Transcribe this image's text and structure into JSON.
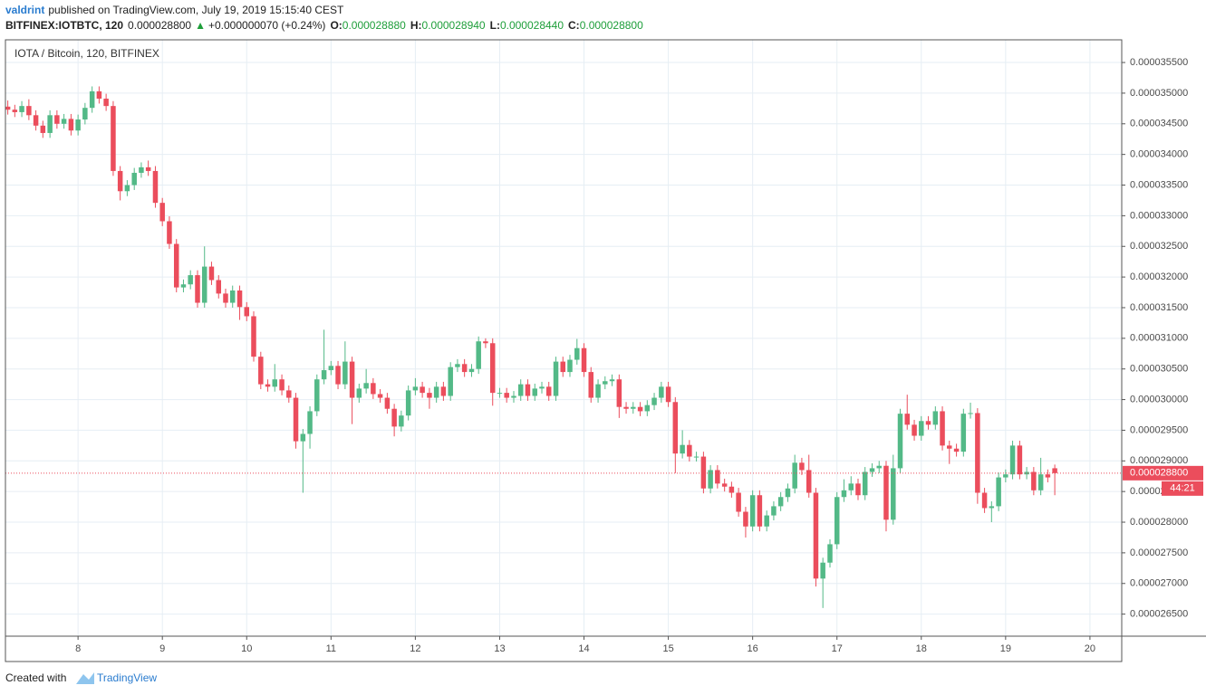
{
  "header": {
    "author": "valdrint",
    "published": "published on TradingView.com, July 19, 2019 15:15:40 CEST",
    "symbol": "BITFINEX:IOTBTC, 120",
    "price": "0.000028800",
    "change": "+0.000000070 (+0.24%)",
    "open_label": "O:",
    "open": "0.000028880",
    "high_label": "H:",
    "high": "0.000028940",
    "low_label": "L:",
    "low": "0.000028440",
    "close_label": "C:",
    "close": "0.000028800"
  },
  "footer": {
    "created": "Created with",
    "brand": "TradingView"
  },
  "chart_data": {
    "type": "candlestick",
    "title": "IOTA / Bitcoin, 120, BITFINEX",
    "up_color": "#53b987",
    "down_color": "#eb4d5c",
    "grid": true,
    "last_price_label": "0.000028800",
    "countdown": "44:21",
    "xlim": [
      7.139,
      20.377
    ],
    "xticks": [
      8,
      9,
      10,
      11,
      12,
      13,
      14,
      15,
      16,
      17,
      18,
      19,
      20
    ],
    "ylim": [
      2.614e-05,
      3.587e-05
    ],
    "yticks": [
      {
        "value": 2.65e-05,
        "label": "0.000026500"
      },
      {
        "value": 2.7e-05,
        "label": "0.000027000"
      },
      {
        "value": 2.75e-05,
        "label": "0.000027500"
      },
      {
        "value": 2.8e-05,
        "label": "0.000028000"
      },
      {
        "value": 2.85e-05,
        "label": "0.000028500"
      },
      {
        "value": 2.9e-05,
        "label": "0.000029000"
      },
      {
        "value": 2.95e-05,
        "label": "0.000029500"
      },
      {
        "value": 3e-05,
        "label": "0.000030000"
      },
      {
        "value": 3.05e-05,
        "label": "0.000030500"
      },
      {
        "value": 3.1e-05,
        "label": "0.000031000"
      },
      {
        "value": 3.15e-05,
        "label": "0.000031500"
      },
      {
        "value": 3.2e-05,
        "label": "0.000032000"
      },
      {
        "value": 3.25e-05,
        "label": "0.000032500"
      },
      {
        "value": 3.3e-05,
        "label": "0.000033000"
      },
      {
        "value": 3.35e-05,
        "label": "0.000033500"
      },
      {
        "value": 3.4e-05,
        "label": "0.000034000"
      },
      {
        "value": 3.45e-05,
        "label": "0.000034500"
      },
      {
        "value": 3.5e-05,
        "label": "0.000035000"
      },
      {
        "value": 3.55e-05,
        "label": "0.000035500"
      }
    ],
    "x": [
      7.167,
      7.25,
      7.333,
      7.417,
      7.5,
      7.583,
      7.667,
      7.75,
      7.833,
      7.917,
      8,
      8.083,
      8.167,
      8.25,
      8.333,
      8.417,
      8.5,
      8.583,
      8.667,
      8.75,
      8.833,
      8.917,
      9,
      9.083,
      9.167,
      9.25,
      9.333,
      9.417,
      9.5,
      9.583,
      9.667,
      9.75,
      9.833,
      9.917,
      10,
      10.083,
      10.167,
      10.25,
      10.333,
      10.417,
      10.5,
      10.583,
      10.667,
      10.75,
      10.833,
      10.917,
      11,
      11.083,
      11.167,
      11.25,
      11.333,
      11.417,
      11.5,
      11.583,
      11.667,
      11.75,
      11.833,
      11.917,
      12,
      12.083,
      12.167,
      12.25,
      12.333,
      12.417,
      12.5,
      12.583,
      12.667,
      12.75,
      12.833,
      12.917,
      13,
      13.083,
      13.167,
      13.25,
      13.333,
      13.417,
      13.5,
      13.583,
      13.667,
      13.75,
      13.833,
      13.917,
      14,
      14.083,
      14.167,
      14.25,
      14.333,
      14.417,
      14.5,
      14.583,
      14.667,
      14.75,
      14.833,
      14.917,
      15,
      15.083,
      15.167,
      15.25,
      15.333,
      15.417,
      15.5,
      15.583,
      15.667,
      15.75,
      15.833,
      15.917,
      16,
      16.083,
      16.167,
      16.25,
      16.333,
      16.417,
      16.5,
      16.583,
      16.667,
      16.75,
      16.833,
      16.917,
      17,
      17.083,
      17.167,
      17.25,
      17.333,
      17.417,
      17.5,
      17.583,
      17.667,
      17.75,
      17.833,
      17.917,
      18,
      18.083,
      18.167,
      18.25,
      18.333,
      18.417,
      18.5,
      18.583,
      18.667,
      18.75,
      18.833,
      18.917,
      19,
      19.083,
      19.167,
      19.25,
      19.333,
      19.417,
      19.5,
      19.583
    ],
    "open": [
      3.478e-05,
      3.473e-05,
      3.469e-05,
      3.479e-05,
      3.464e-05,
      3.447e-05,
      3.435e-05,
      3.464e-05,
      3.45e-05,
      3.458e-05,
      3.439e-05,
      3.457e-05,
      3.476e-05,
      3.503e-05,
      3.491e-05,
      3.479e-05,
      3.373e-05,
      3.34e-05,
      3.35e-05,
      3.37e-05,
      3.379e-05,
      3.373e-05,
      3.321e-05,
      3.291e-05,
      3.254e-05,
      3.183e-05,
      3.188e-05,
      3.203e-05,
      3.158e-05,
      3.217e-05,
      3.195e-05,
      3.173e-05,
      3.158e-05,
      3.178e-05,
      3.151e-05,
      3.136e-05,
      3.07e-05,
      3.025e-05,
      3.021e-05,
      3.033e-05,
      3.015e-05,
      3.003e-05,
      2.932e-05,
      2.944e-05,
      2.981e-05,
      3.033e-05,
      3.048e-05,
      3.055e-05,
      3.025e-05,
      3.062e-05,
      3.003e-05,
      3.018e-05,
      3.027e-05,
      3.009e-05,
      3.003e-05,
      2.985e-05,
      2.956e-05,
      2.974e-05,
      3.015e-05,
      3.021e-05,
      3.011e-05,
      3.003e-05,
      3.021e-05,
      3.006e-05,
      3.053e-05,
      3.058e-05,
      3.045e-05,
      3.05e-05,
      3.095e-05,
      3.092e-05,
      3.011e-05,
      3.011e-05,
      3.003e-05,
      3.006e-05,
      3.025e-05,
      3.006e-05,
      3.018e-05,
      3.021e-05,
      3.006e-05,
      3.062e-05,
      3.045e-05,
      3.065e-05,
      3.084e-05,
      3.045e-05,
      3.003e-05,
      3.025e-05,
      3.03e-05,
      3.033e-05,
      2.988e-05,
      2.985e-05,
      2.988e-05,
      2.981e-05,
      2.991e-05,
      3.003e-05,
      3.021e-05,
      2.996e-05,
      2.912e-05,
      2.926e-05,
      2.907e-05,
      2.907e-05,
      2.855e-05,
      2.885e-05,
      2.863e-05,
      2.858e-05,
      2.848e-05,
      2.817e-05,
      2.793e-05,
      2.844e-05,
      2.793e-05,
      2.811e-05,
      2.826e-05,
      2.841e-05,
      2.855e-05,
      2.897e-05,
      2.885e-05,
      2.848e-05,
      2.708e-05,
      2.734e-05,
      2.764e-05,
      2.841e-05,
      2.852e-05,
      2.863e-05,
      2.844e-05,
      2.882e-05,
      2.888e-05,
      2.892e-05,
      2.804e-05,
      2.888e-05,
      2.977e-05,
      2.959e-05,
      2.941e-05,
      2.965e-05,
      2.959e-05,
      2.981e-05,
      2.925e-05,
      2.92e-05,
      2.915e-05,
      2.977e-05,
      2.978e-05,
      2.848e-05,
      2.823e-05,
      2.826e-05,
      2.873e-05,
      2.878e-05,
      2.925e-05,
      2.878e-05,
      2.882e-05,
      2.852e-05,
      2.878e-05,
      2.888e-05
    ],
    "high": [
      3.488e-05,
      3.481e-05,
      3.487e-05,
      3.49e-05,
      3.472e-05,
      3.455e-05,
      3.472e-05,
      3.472e-05,
      3.466e-05,
      3.466e-05,
      3.465e-05,
      3.484e-05,
      3.511e-05,
      3.511e-05,
      3.499e-05,
      3.487e-05,
      3.381e-05,
      3.358e-05,
      3.378e-05,
      3.387e-05,
      3.39e-05,
      3.381e-05,
      3.329e-05,
      3.299e-05,
      3.262e-05,
      3.196e-05,
      3.211e-05,
      3.211e-05,
      3.25e-05,
      3.225e-05,
      3.203e-05,
      3.181e-05,
      3.186e-05,
      3.186e-05,
      3.159e-05,
      3.144e-05,
      3.078e-05,
      3.033e-05,
      3.058e-05,
      3.041e-05,
      3.023e-05,
      3.011e-05,
      2.952e-05,
      2.989e-05,
      3.041e-05,
      3.114e-05,
      3.063e-05,
      3.063e-05,
      3.095e-05,
      3.07e-05,
      3.026e-05,
      3.05e-05,
      3.035e-05,
      3.017e-05,
      3.011e-05,
      2.993e-05,
      2.982e-05,
      3.023e-05,
      3.035e-05,
      3.029e-05,
      3.019e-05,
      3.029e-05,
      3.029e-05,
      3.061e-05,
      3.066e-05,
      3.066e-05,
      3.058e-05,
      3.103e-05,
      3.1e-05,
      3.1e-05,
      3.019e-05,
      3.019e-05,
      3.014e-05,
      3.033e-05,
      3.033e-05,
      3.026e-05,
      3.029e-05,
      3.029e-05,
      3.07e-05,
      3.07e-05,
      3.073e-05,
      3.099e-05,
      3.092e-05,
      3.053e-05,
      3.033e-05,
      3.038e-05,
      3.041e-05,
      3.041e-05,
      2.996e-05,
      2.996e-05,
      2.996e-05,
      2.999e-05,
      3.011e-05,
      3.029e-05,
      3.029e-05,
      3.004e-05,
      2.95e-05,
      2.934e-05,
      2.915e-05,
      2.915e-05,
      2.893e-05,
      2.893e-05,
      2.871e-05,
      2.866e-05,
      2.856e-05,
      2.825e-05,
      2.852e-05,
      2.852e-05,
      2.819e-05,
      2.834e-05,
      2.849e-05,
      2.863e-05,
      2.91e-05,
      2.905e-05,
      2.91e-05,
      2.856e-05,
      2.742e-05,
      2.772e-05,
      2.849e-05,
      2.87e-05,
      2.875e-05,
      2.871e-05,
      2.89e-05,
      2.896e-05,
      2.9e-05,
      2.9e-05,
      2.91e-05,
      2.985e-05,
      3.008e-05,
      2.967e-05,
      2.973e-05,
      2.973e-05,
      2.989e-05,
      2.989e-05,
      2.933e-05,
      2.928e-05,
      2.985e-05,
      2.995e-05,
      2.986e-05,
      2.856e-05,
      2.834e-05,
      2.881e-05,
      2.886e-05,
      2.933e-05,
      2.933e-05,
      2.89e-05,
      2.89e-05,
      2.905e-05,
      2.886e-05,
      2.894e-05
    ],
    "low": [
      3.465e-05,
      3.461e-05,
      3.461e-05,
      3.456e-05,
      3.439e-05,
      3.427e-05,
      3.427e-05,
      3.442e-05,
      3.442e-05,
      3.431e-05,
      3.431e-05,
      3.449e-05,
      3.468e-05,
      3.483e-05,
      3.471e-05,
      3.365e-05,
      3.325e-05,
      3.332e-05,
      3.342e-05,
      3.362e-05,
      3.365e-05,
      3.313e-05,
      3.283e-05,
      3.246e-05,
      3.175e-05,
      3.175e-05,
      3.18e-05,
      3.15e-05,
      3.15e-05,
      3.187e-05,
      3.165e-05,
      3.15e-05,
      3.15e-05,
      3.13e-05,
      3.128e-05,
      3.062e-05,
      3.017e-05,
      3.013e-05,
      3.013e-05,
      3.007e-05,
      2.995e-05,
      2.92e-05,
      2.848e-05,
      2.92e-05,
      2.973e-05,
      3.025e-05,
      3.04e-05,
      3.017e-05,
      3.017e-05,
      2.96e-05,
      2.995e-05,
      3.01e-05,
      3.001e-05,
      2.995e-05,
      2.977e-05,
      2.94e-05,
      2.948e-05,
      2.966e-05,
      3.007e-05,
      3.003e-05,
      2.985e-05,
      2.995e-05,
      2.998e-05,
      2.998e-05,
      3.045e-05,
      3.037e-05,
      3.037e-05,
      3.042e-05,
      3.084e-05,
      2.99e-05,
      3.003e-05,
      2.995e-05,
      2.995e-05,
      2.998e-05,
      2.998e-05,
      2.998e-05,
      3.01e-05,
      2.998e-05,
      2.998e-05,
      3.037e-05,
      3.037e-05,
      3.057e-05,
      3.037e-05,
      2.995e-05,
      2.995e-05,
      3.017e-05,
      3.022e-05,
      2.97e-05,
      2.977e-05,
      2.977e-05,
      2.973e-05,
      2.973e-05,
      2.983e-05,
      2.995e-05,
      2.988e-05,
      2.88e-05,
      2.904e-05,
      2.899e-05,
      2.899e-05,
      2.847e-05,
      2.847e-05,
      2.855e-05,
      2.85e-05,
      2.84e-05,
      2.809e-05,
      2.775e-05,
      2.785e-05,
      2.785e-05,
      2.785e-05,
      2.803e-05,
      2.818e-05,
      2.833e-05,
      2.847e-05,
      2.877e-05,
      2.84e-05,
      2.695e-05,
      2.66e-05,
      2.726e-05,
      2.756e-05,
      2.833e-05,
      2.844e-05,
      2.836e-05,
      2.836e-05,
      2.874e-05,
      2.88e-05,
      2.785e-05,
      2.796e-05,
      2.88e-05,
      2.951e-05,
      2.933e-05,
      2.933e-05,
      2.951e-05,
      2.951e-05,
      2.917e-05,
      2.895e-05,
      2.907e-05,
      2.907e-05,
      2.969e-05,
      2.83e-05,
      2.815e-05,
      2.8e-05,
      2.818e-05,
      2.865e-05,
      2.87e-05,
      2.87e-05,
      2.87e-05,
      2.844e-05,
      2.844e-05,
      2.865e-05,
      2.844e-05
    ],
    "close": [
      3.473e-05,
      3.469e-05,
      3.479e-05,
      3.464e-05,
      3.447e-05,
      3.435e-05,
      3.464e-05,
      3.45e-05,
      3.458e-05,
      3.439e-05,
      3.457e-05,
      3.476e-05,
      3.503e-05,
      3.491e-05,
      3.479e-05,
      3.373e-05,
      3.34e-05,
      3.35e-05,
      3.37e-05,
      3.379e-05,
      3.373e-05,
      3.321e-05,
      3.291e-05,
      3.254e-05,
      3.183e-05,
      3.188e-05,
      3.203e-05,
      3.158e-05,
      3.217e-05,
      3.195e-05,
      3.173e-05,
      3.158e-05,
      3.178e-05,
      3.151e-05,
      3.136e-05,
      3.07e-05,
      3.025e-05,
      3.021e-05,
      3.033e-05,
      3.015e-05,
      3.003e-05,
      2.932e-05,
      2.944e-05,
      2.981e-05,
      3.033e-05,
      3.048e-05,
      3.055e-05,
      3.025e-05,
      3.062e-05,
      3.003e-05,
      3.018e-05,
      3.027e-05,
      3.009e-05,
      3.003e-05,
      2.985e-05,
      2.956e-05,
      2.974e-05,
      3.015e-05,
      3.021e-05,
      3.011e-05,
      3.003e-05,
      3.021e-05,
      3.006e-05,
      3.053e-05,
      3.058e-05,
      3.045e-05,
      3.05e-05,
      3.095e-05,
      3.092e-05,
      3.011e-05,
      3.011e-05,
      3.003e-05,
      3.006e-05,
      3.025e-05,
      3.006e-05,
      3.018e-05,
      3.021e-05,
      3.006e-05,
      3.062e-05,
      3.045e-05,
      3.065e-05,
      3.084e-05,
      3.045e-05,
      3.003e-05,
      3.025e-05,
      3.03e-05,
      3.033e-05,
      2.988e-05,
      2.985e-05,
      2.988e-05,
      2.981e-05,
      2.991e-05,
      3.003e-05,
      3.021e-05,
      2.996e-05,
      2.912e-05,
      2.926e-05,
      2.907e-05,
      2.907e-05,
      2.855e-05,
      2.885e-05,
      2.863e-05,
      2.858e-05,
      2.848e-05,
      2.817e-05,
      2.793e-05,
      2.844e-05,
      2.793e-05,
      2.811e-05,
      2.826e-05,
      2.841e-05,
      2.855e-05,
      2.897e-05,
      2.885e-05,
      2.848e-05,
      2.708e-05,
      2.734e-05,
      2.764e-05,
      2.841e-05,
      2.852e-05,
      2.863e-05,
      2.844e-05,
      2.882e-05,
      2.888e-05,
      2.892e-05,
      2.804e-05,
      2.888e-05,
      2.977e-05,
      2.959e-05,
      2.941e-05,
      2.965e-05,
      2.959e-05,
      2.981e-05,
      2.925e-05,
      2.92e-05,
      2.915e-05,
      2.977e-05,
      2.978e-05,
      2.848e-05,
      2.823e-05,
      2.826e-05,
      2.873e-05,
      2.878e-05,
      2.925e-05,
      2.878e-05,
      2.882e-05,
      2.852e-05,
      2.878e-05,
      2.873e-05,
      2.88e-05
    ]
  }
}
